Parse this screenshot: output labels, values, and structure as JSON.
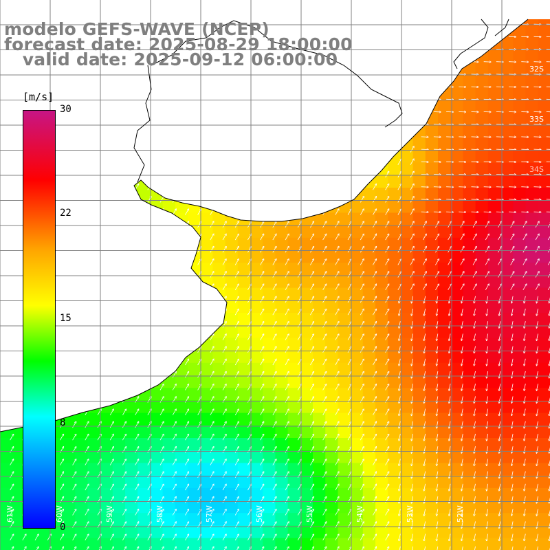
{
  "header": {
    "line1": "modelo GEFS-WAVE (NCEP)",
    "line2": "forecast date: 2025-08-29 18:00:00",
    "line3": "   valid date: 2025-09-12 06:00:00"
  },
  "colorbar": {
    "unit": "[m/s]",
    "ticks": [
      "30",
      "22",
      "15",
      "8",
      "0"
    ],
    "range": [
      0,
      30
    ],
    "stops": [
      {
        "value": 0,
        "color": "#0000ff"
      },
      {
        "value": 8,
        "color": "#00ffff"
      },
      {
        "value": 12,
        "color": "#00ff00"
      },
      {
        "value": 16,
        "color": "#ffff00"
      },
      {
        "value": 20,
        "color": "#ffa500"
      },
      {
        "value": 25,
        "color": "#ff0000"
      },
      {
        "value": 30,
        "color": "#c71585"
      }
    ]
  },
  "map": {
    "lat_labels": [
      "32S",
      "33S",
      "34S"
    ],
    "lon_labels": [
      "61W",
      "60W",
      "59W",
      "58W",
      "57W",
      "56W",
      "55W",
      "54W",
      "53W",
      "52W"
    ],
    "land_color": "#ffffff",
    "grid_color": "#808080",
    "coast_color": "#000000",
    "arrow_color": "#ffffff"
  }
}
